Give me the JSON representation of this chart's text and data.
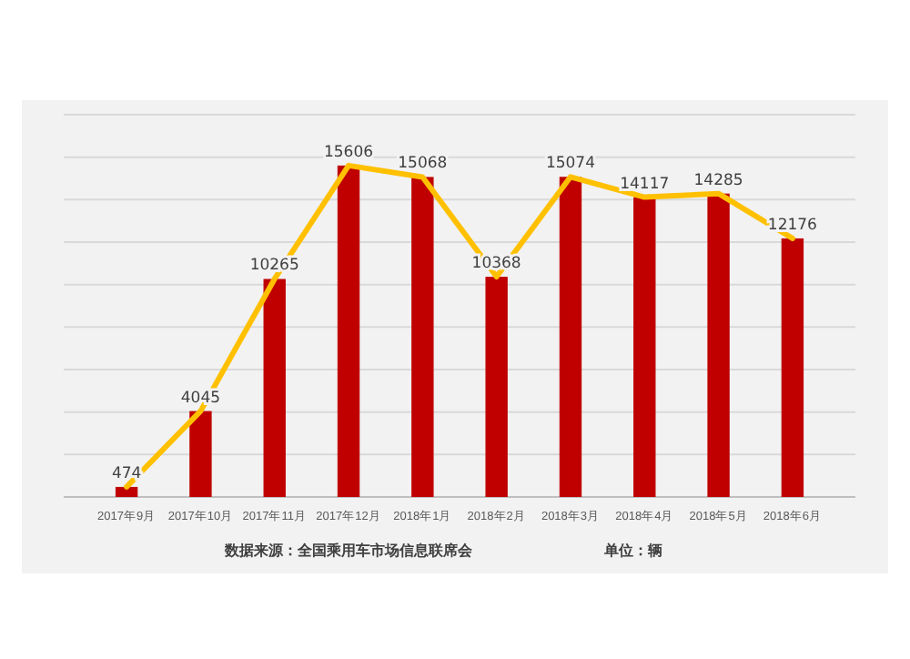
{
  "chart_data": {
    "type": "bar",
    "categories": [
      "2017年9月",
      "2017年10月",
      "2017年11月",
      "2017年12月",
      "2018年1月",
      "2018年2月",
      "2018年3月",
      "2018年4月",
      "2018年5月",
      "2018年6月"
    ],
    "series": [
      {
        "color": "#c00000",
        "values": [
          474,
          4045,
          10265,
          15606,
          15068,
          10368,
          15074,
          14117,
          14285,
          12176
        ],
        "value_labels": [
          "474",
          "4045",
          "10265",
          "15606",
          "15068",
          "10368",
          "15074",
          "14117",
          "14285",
          "12176"
        ]
      },
      {
        "type": "line",
        "color": "#ffc000",
        "values": [
          474,
          4045,
          10265,
          15606,
          15068,
          10368,
          15074,
          14117,
          14285,
          12176
        ]
      }
    ],
    "ylim": [
      0,
      18000
    ],
    "yticks": [
      {
        "value": 0,
        "label": null
      },
      {
        "value": 2000,
        "label": null
      },
      {
        "value": 4000,
        "label": null
      },
      {
        "value": 6000,
        "label": null
      },
      {
        "value": 8000,
        "label": null
      },
      {
        "value": 10000,
        "label": null
      },
      {
        "value": 12000,
        "label": null
      },
      {
        "value": 14000,
        "label": null
      },
      {
        "value": 16000,
        "label": null
      },
      {
        "value": 18000,
        "label": null
      }
    ],
    "grid": "y",
    "tick_labels": "x",
    "marker": "none",
    "annotations": [
      "数据来源：全国乘用车市场信息联席会",
      "单位：辆"
    ]
  }
}
